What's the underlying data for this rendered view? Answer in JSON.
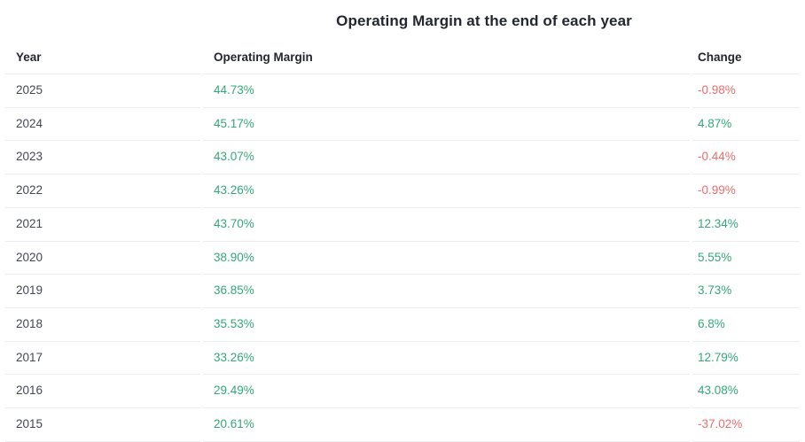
{
  "title": "Operating Margin at the end of each year",
  "colors": {
    "title": "#23272e",
    "header": "#23272e",
    "year": "#434854",
    "positive": "#33a878",
    "negative": "#f06c6c",
    "border": "#ededf0"
  },
  "chart_data": {
    "type": "table",
    "title": "Operating Margin at the end of each year",
    "columns": [
      "Year",
      "Operating Margin",
      "Change"
    ],
    "rows": [
      {
        "year": "2025",
        "operating_margin": "44.73%",
        "change": "-0.98%",
        "change_direction": "negative"
      },
      {
        "year": "2024",
        "operating_margin": "45.17%",
        "change": "4.87%",
        "change_direction": "positive"
      },
      {
        "year": "2023",
        "operating_margin": "43.07%",
        "change": "-0.44%",
        "change_direction": "negative"
      },
      {
        "year": "2022",
        "operating_margin": "43.26%",
        "change": "-0.99%",
        "change_direction": "negative"
      },
      {
        "year": "2021",
        "operating_margin": "43.70%",
        "change": "12.34%",
        "change_direction": "positive"
      },
      {
        "year": "2020",
        "operating_margin": "38.90%",
        "change": "5.55%",
        "change_direction": "positive"
      },
      {
        "year": "2019",
        "operating_margin": "36.85%",
        "change": "3.73%",
        "change_direction": "positive"
      },
      {
        "year": "2018",
        "operating_margin": "35.53%",
        "change": "6.8%",
        "change_direction": "positive"
      },
      {
        "year": "2017",
        "operating_margin": "33.26%",
        "change": "12.79%",
        "change_direction": "positive"
      },
      {
        "year": "2016",
        "operating_margin": "29.49%",
        "change": "43.08%",
        "change_direction": "positive"
      },
      {
        "year": "2015",
        "operating_margin": "20.61%",
        "change": "-37.02%",
        "change_direction": "negative"
      }
    ]
  }
}
